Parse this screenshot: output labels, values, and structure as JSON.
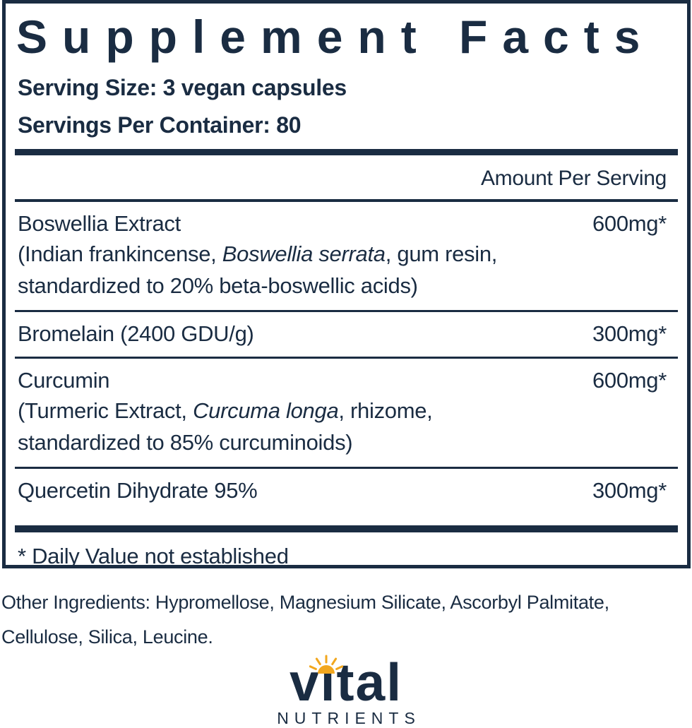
{
  "colors": {
    "navy": "#1a2c42",
    "sun": "#f2a71e"
  },
  "panel": {
    "title": "Supplement Facts",
    "serving_size": "Serving Size: 3 vegan capsules",
    "servings_per_container": "Servings Per Container: 80",
    "amount_header": "Amount Per Serving",
    "rows": [
      {
        "name": "Boswellia Extract",
        "amount": "600mg*",
        "detail_lines": [
          [
            {
              "t": "(Indian frankincense, "
            },
            {
              "t": "Boswellia serrata",
              "i": true
            },
            {
              "t": ", gum resin,"
            }
          ],
          [
            {
              "t": "standardized to 20% beta-boswellic acids)"
            }
          ]
        ]
      },
      {
        "name": "Bromelain (2400 GDU/g)",
        "amount": "300mg*",
        "detail_lines": []
      },
      {
        "name": "Curcumin",
        "amount": "600mg*",
        "detail_lines": [
          [
            {
              "t": "(Turmeric Extract, "
            },
            {
              "t": "Curcuma longa",
              "i": true
            },
            {
              "t": ", rhizome,"
            }
          ],
          [
            {
              "t": "standardized to 85% curcuminoids)"
            }
          ]
        ]
      },
      {
        "name": "Quercetin Dihydrate 95%",
        "amount": "300mg*",
        "detail_lines": []
      }
    ],
    "footnote": "* Daily Value not established"
  },
  "other_ingredients": "Other Ingredients: Hypromellose, Magnesium Silicate, Ascorbyl Palmitate, Cellulose, Silica, Leucine.",
  "logo": {
    "wordmark": "vital",
    "wordmark_display": "vıtal",
    "subtext": "NUTRIENTS",
    "sun_icon": "sun-icon"
  }
}
